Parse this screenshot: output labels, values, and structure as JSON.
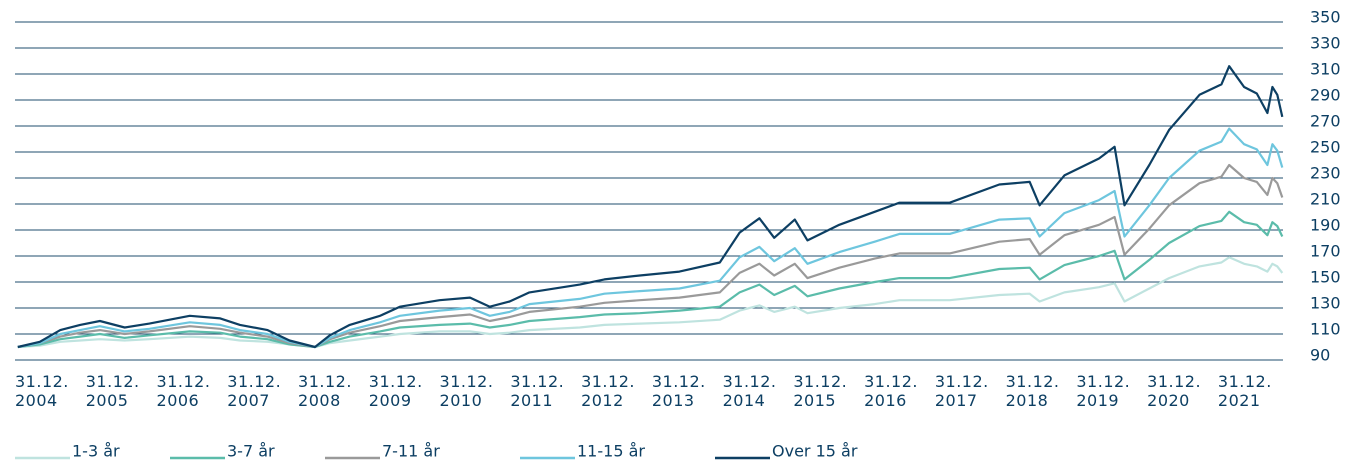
{
  "chart_data": {
    "type": "line",
    "x": [
      2004.04,
      2004.35,
      2004.64,
      2004.92,
      2005.2,
      2005.55,
      2005.9,
      2006.47,
      2006.9,
      2007.18,
      2007.57,
      2007.88,
      2008.24,
      2008.45,
      2008.73,
      2009.16,
      2009.44,
      2010.0,
      2010.43,
      2010.71,
      2010.99,
      2011.27,
      2011.98,
      2012.33,
      2012.83,
      2013.39,
      2013.96,
      2014.24,
      2014.52,
      2014.73,
      2015.02,
      2015.2,
      2015.65,
      2016.15,
      2016.5,
      2017.21,
      2017.91,
      2018.34,
      2018.48,
      2018.83,
      2019.32,
      2019.54,
      2019.68,
      2020.03,
      2020.31,
      2020.74,
      2021.05,
      2021.16,
      2021.37,
      2021.55,
      2021.7,
      2021.77,
      2021.84,
      2021.91
    ],
    "series": [
      {
        "name": "1-3 år",
        "color": "#bfe3df",
        "values": [
          100,
          101,
          104,
          105,
          106,
          105,
          106,
          108,
          107,
          105,
          104,
          102,
          100,
          103,
          105,
          108,
          110,
          112,
          112,
          110,
          111,
          113,
          115,
          117,
          118,
          119,
          121,
          128,
          132,
          127,
          131,
          126,
          130,
          133,
          136,
          136,
          140,
          141,
          135,
          142,
          146,
          149,
          135,
          145,
          153,
          162,
          165,
          169,
          164,
          162,
          158,
          164,
          162,
          157
        ]
      },
      {
        "name": "3-7 år",
        "color": "#5bbcaa",
        "values": [
          100,
          102,
          106,
          108,
          110,
          107,
          109,
          112,
          111,
          108,
          106,
          102,
          100,
          104,
          108,
          112,
          115,
          117,
          118,
          115,
          117,
          120,
          123,
          125,
          126,
          128,
          131,
          142,
          148,
          140,
          147,
          139,
          145,
          150,
          153,
          153,
          160,
          161,
          152,
          163,
          170,
          174,
          152,
          167,
          180,
          193,
          197,
          204,
          196,
          194,
          186,
          196,
          193,
          185
        ]
      },
      {
        "name": "7-11 år",
        "color": "#9a9a9a",
        "values": [
          100,
          103,
          108,
          111,
          113,
          110,
          112,
          116,
          114,
          111,
          108,
          103,
          100,
          106,
          111,
          116,
          120,
          123,
          125,
          120,
          123,
          127,
          131,
          134,
          136,
          138,
          142,
          157,
          164,
          155,
          164,
          153,
          161,
          168,
          172,
          172,
          181,
          183,
          171,
          186,
          194,
          200,
          171,
          191,
          209,
          226,
          231,
          240,
          230,
          227,
          217,
          230,
          226,
          215
        ]
      },
      {
        "name": "11-15 år",
        "color": "#6ec6de",
        "values": [
          100,
          103,
          110,
          113,
          116,
          112,
          114,
          119,
          117,
          113,
          110,
          104,
          100,
          107,
          113,
          119,
          124,
          128,
          130,
          124,
          127,
          133,
          137,
          141,
          143,
          145,
          151,
          169,
          177,
          166,
          176,
          164,
          173,
          181,
          187,
          187,
          198,
          199,
          185,
          203,
          213,
          220,
          185,
          209,
          230,
          251,
          258,
          268,
          256,
          252,
          240,
          256,
          251,
          238
        ]
      },
      {
        "name": "Over 15 år",
        "color": "#0d3f63",
        "values": [
          100,
          104,
          113,
          117,
          120,
          115,
          118,
          124,
          122,
          117,
          113,
          105,
          100,
          109,
          117,
          124,
          131,
          136,
          138,
          131,
          135,
          142,
          148,
          152,
          155,
          158,
          165,
          188,
          199,
          184,
          198,
          182,
          194,
          204,
          211,
          211,
          225,
          227,
          209,
          232,
          245,
          254,
          209,
          240,
          267,
          294,
          302,
          316,
          300,
          295,
          280,
          300,
          294,
          277
        ]
      }
    ],
    "xlim": [
      2004,
      2021.92
    ],
    "xticks": [
      {
        "value": 2004,
        "label": "31.12.\n2004"
      },
      {
        "value": 2005,
        "label": "31.12.\n2005"
      },
      {
        "value": 2006,
        "label": "31.12.\n2006"
      },
      {
        "value": 2007,
        "label": "31.12.\n2007"
      },
      {
        "value": 2008,
        "label": "31.12.\n2008"
      },
      {
        "value": 2009,
        "label": "31.12.\n2009"
      },
      {
        "value": 2010,
        "label": "31.12.\n2010"
      },
      {
        "value": 2011,
        "label": "31.12.\n2011"
      },
      {
        "value": 2012,
        "label": "31.12.\n2012"
      },
      {
        "value": 2013,
        "label": "31.12.\n2013"
      },
      {
        "value": 2014,
        "label": "31.12.\n2014"
      },
      {
        "value": 2015,
        "label": "31.12.\n2015"
      },
      {
        "value": 2016,
        "label": "31.12.\n2016"
      },
      {
        "value": 2017,
        "label": "31.12.\n2017"
      },
      {
        "value": 2018,
        "label": "31.12.\n2018"
      },
      {
        "value": 2019,
        "label": "31.12.\n2019"
      },
      {
        "value": 2020,
        "label": "31.12.\n2020"
      },
      {
        "value": 2021,
        "label": "31.12.\n2021"
      }
    ],
    "ylim": [
      90,
      350
    ],
    "yticks": [
      90,
      110,
      130,
      150,
      170,
      190,
      210,
      230,
      250,
      270,
      290,
      310,
      330,
      350
    ],
    "grid": true
  }
}
